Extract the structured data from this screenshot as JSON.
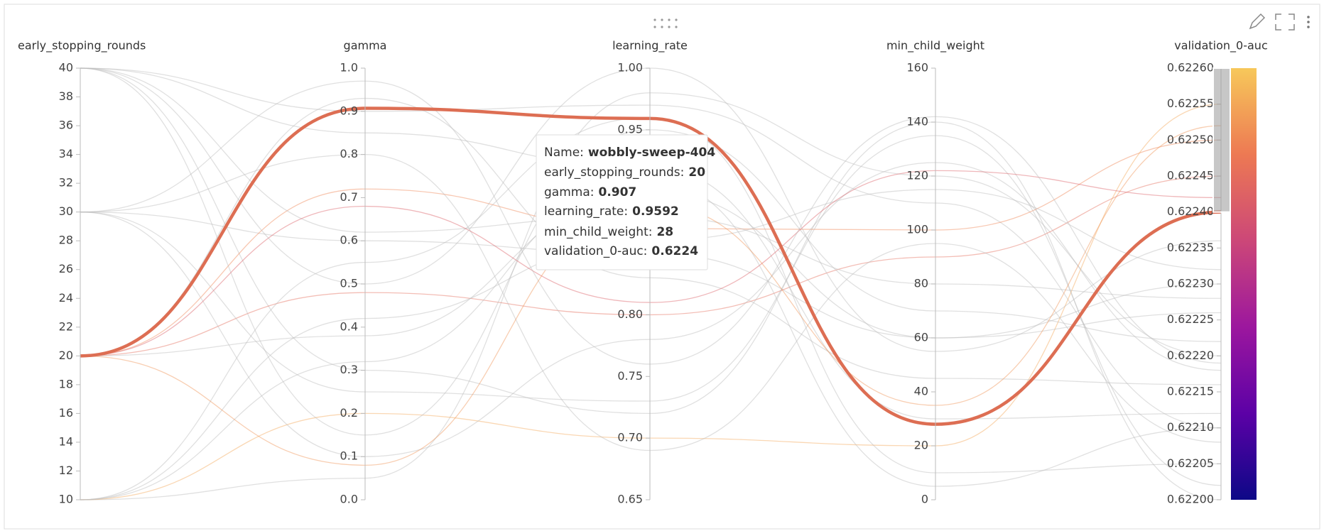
{
  "chart_data": {
    "type": "parallel_coordinates",
    "dimensions": [
      {
        "name": "early_stopping_rounds",
        "lim": [
          10,
          40
        ],
        "ticks": [
          10,
          12,
          14,
          16,
          18,
          20,
          22,
          24,
          26,
          28,
          30,
          32,
          34,
          36,
          38,
          40
        ]
      },
      {
        "name": "gamma",
        "lim": [
          0,
          1
        ],
        "ticks": [
          {
            "value": 0,
            "label": "0.0"
          },
          0.1,
          0.2,
          0.3,
          0.4,
          0.5,
          0.6,
          0.7,
          0.8,
          0.9,
          {
            "value": 1,
            "label": "1.0"
          }
        ]
      },
      {
        "name": "learning_rate",
        "lim": [
          0.65,
          1
        ],
        "ticks": [
          0.65,
          {
            "value": 0.7,
            "label": "0.70"
          },
          0.75,
          {
            "value": 0.8,
            "label": "0.80"
          },
          0.85,
          {
            "value": 0.9,
            "label": "0.90"
          },
          0.95,
          {
            "value": 1,
            "label": "1.00"
          }
        ]
      },
      {
        "name": "min_child_weight",
        "lim": [
          0,
          160
        ],
        "ticks": [
          0,
          20,
          40,
          60,
          80,
          100,
          120,
          140,
          160
        ]
      },
      {
        "name": "validation_0-auc",
        "lim": [
          0.622,
          0.6226
        ],
        "ticks": [
          {
            "value": 0.622,
            "label": "0.62200"
          },
          0.62205,
          {
            "value": 0.6221,
            "label": "0.62210"
          },
          0.62215,
          {
            "value": 0.6222,
            "label": "0.62220"
          },
          0.62225,
          {
            "value": 0.6223,
            "label": "0.62230"
          },
          0.62235,
          {
            "value": 0.6224,
            "label": "0.62240"
          },
          0.62245,
          {
            "value": 0.6225,
            "label": "0.62250"
          },
          0.62255,
          {
            "value": 0.6226,
            "label": "0.62260"
          }
        ]
      }
    ],
    "colorscale": [
      "#0d0887",
      "#5c01a6",
      "#9c179e",
      "#cc4778",
      "#ed7953",
      "#f7c85a"
    ],
    "brush": [
      0.6224,
      0.6226
    ],
    "runs": [
      {
        "values": [
          40,
          0.9,
          0.97,
          110,
          0.6221
        ]
      },
      {
        "values": [
          40,
          0.3,
          0.72,
          140,
          0.622
        ]
      },
      {
        "values": [
          30,
          0.6,
          0.85,
          60,
          0.6223
        ]
      },
      {
        "values": [
          10,
          0.05,
          0.98,
          120,
          0.6222
        ]
      },
      {
        "values": [
          20,
          0.48,
          0.8,
          90,
          0.62245
        ]
      },
      {
        "values": [
          20,
          0.72,
          0.87,
          100,
          0.6225
        ]
      },
      {
        "values": [
          10,
          0.2,
          0.7,
          20,
          0.62255
        ]
      },
      {
        "values": [
          40,
          0.85,
          0.92,
          30,
          0.62212
        ]
      },
      {
        "values": [
          30,
          0.1,
          0.78,
          125,
          0.62218
        ]
      },
      {
        "values": [
          20,
          0.38,
          0.9,
          60,
          0.62226
        ]
      },
      {
        "values": [
          10,
          0.55,
          0.96,
          10,
          0.62205
        ]
      },
      {
        "values": [
          40,
          0.62,
          0.88,
          80,
          0.62228
        ]
      },
      {
        "values": [
          30,
          0.25,
          0.73,
          135,
          0.62202
        ]
      },
      {
        "values": [
          20,
          0.93,
          0.83,
          45,
          0.62216
        ]
      },
      {
        "values": [
          10,
          0.42,
          0.86,
          115,
          0.62232
        ]
      },
      {
        "values": [
          40,
          0.15,
          0.95,
          70,
          0.62222
        ]
      },
      {
        "values": [
          30,
          0.8,
          0.69,
          95,
          0.62208
        ]
      },
      {
        "values": [
          20,
          0.68,
          0.81,
          122,
          0.62242
        ]
      },
      {
        "values": [
          10,
          0.32,
          0.91,
          5,
          0.6221
        ]
      },
      {
        "values": [
          40,
          0.5,
          1.0,
          55,
          0.62236
        ]
      },
      {
        "values": [
          30,
          0.97,
          0.76,
          142,
          0.62219
        ]
      },
      {
        "values": [
          20,
          0.08,
          0.89,
          35,
          0.62252
        ]
      }
    ],
    "highlight": {
      "name": "wobbly-sweep-404",
      "color": "#dd6e53",
      "values": [
        20,
        0.907,
        0.9592,
        28,
        0.6224
      ]
    },
    "tooltip": {
      "labels": [
        "Name:",
        "early_stopping_rounds:",
        "gamma:",
        "learning_rate:",
        "min_child_weight:",
        "validation_0-auc:"
      ]
    }
  }
}
